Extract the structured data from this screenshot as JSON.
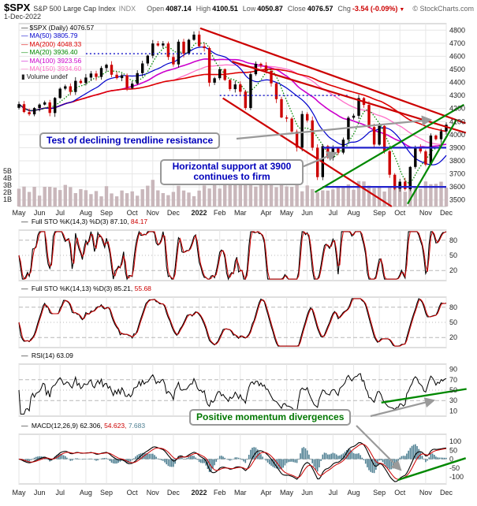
{
  "header": {
    "symbol": "$SPX",
    "index_name": "S&P 500 Large Cap Index",
    "exchange": "INDX",
    "copyright": "© StockCharts.com",
    "date": "1-Dec-2022",
    "quote": {
      "open_label": "Open",
      "open": "4087.14",
      "high_label": "High",
      "high": "4100.51",
      "low_label": "Low",
      "low": "4050.87",
      "close_label": "Close",
      "close": "4076.57",
      "chg_label": "Chg",
      "chg": "-3.54 (-0.09%)",
      "chg_dir": "▼"
    }
  },
  "main_legend": {
    "series_label": "$SPX (Daily)",
    "series_value": "4076.57",
    "ma50_label": "MA(50)",
    "ma50_value": "3805.79",
    "ma200_label": "MA(200)",
    "ma200_value": "4048.33",
    "ma20_label": "MA(20)",
    "ma20_value": "3936.40",
    "ma100_label": "MA(100)",
    "ma100_value": "3923.56",
    "ma150_label": "MA(150)",
    "ma150_value": "3934.60",
    "volume_label": "Volume",
    "volume_value": "undef"
  },
  "panel_legends": {
    "sto_fast_label": "Full STO %K(14,3) %D(3)",
    "sto_fast_k": "87.10,",
    "sto_fast_d": "84.17",
    "sto_slow_label": "Full STO %K(14,13) %D(3)",
    "sto_slow_k": "85.21,",
    "sto_slow_d": "55.68",
    "rsi_label": "RSI(14)",
    "rsi_value": "63.09",
    "macd_label": "MACD(12,26,9)",
    "macd_value": "62.306,",
    "signal_value": "54.623,",
    "hist_value": "7.683"
  },
  "annotations": {
    "trendline": "Test of declining trendline resistance",
    "support_line1": "Horizontal support at 3900",
    "support_line2": "continues to firm",
    "divergence": "Positive momentum divergences"
  },
  "colors": {
    "price_up": "#000000",
    "price_down": "#cc0000",
    "ma50": "#0000cc",
    "ma200": "#dd0000",
    "ma20": "#008800",
    "ma100": "#cc00cc",
    "ma150": "#ff70c8",
    "volume_bar": "#c9b7bb",
    "k_line": "#000000",
    "d_line": "#cc0000",
    "macd_hist": "#4e7f92",
    "annotation_blue": "#0000bb",
    "annotation_green": "#007700",
    "trend_red": "#cc0000",
    "support_blue": "#2222cc",
    "trend_green": "#008800",
    "arrow_gray": "#9a9a9a"
  },
  "axes": {
    "price_ticks": [
      4800,
      4700,
      4600,
      4500,
      4400,
      4300,
      4200,
      4100,
      4000,
      3900,
      3800,
      3700,
      3600,
      3500
    ],
    "volume_ticks": [
      "5B",
      "4B",
      "3B",
      "2B",
      "1B"
    ],
    "sto_ticks": [
      80,
      50,
      20
    ],
    "rsi_ticks": [
      90,
      70,
      50,
      30,
      10
    ],
    "macd_ticks": [
      100,
      50,
      0,
      -50,
      -100
    ]
  },
  "chart_data": [
    {
      "type": "candlestick",
      "title": "$SPX (Daily)",
      "last_close": 4076.57,
      "ylim": [
        3450,
        4850
      ],
      "months": [
        "May",
        "Jun",
        "Jul",
        "Aug",
        "Sep",
        "Oct",
        "Nov",
        "Dec",
        "2022",
        "Feb",
        "Mar",
        "Apr",
        "May",
        "Jun",
        "Jul",
        "Aug",
        "Sep",
        "Oct",
        "Nov",
        "Dec"
      ],
      "month_start_indices": [
        0,
        4,
        8,
        13,
        17,
        22,
        26,
        30,
        35,
        39,
        43,
        48,
        52,
        56,
        61,
        65,
        70,
        74,
        79,
        83
      ],
      "weekly_closes": [
        4233,
        4173,
        4156,
        4204,
        4230,
        4247,
        4166,
        4281,
        4352,
        4370,
        4327,
        4412,
        4396,
        4437,
        4468,
        4442,
        4510,
        4535,
        4459,
        4433,
        4455,
        4357,
        4391,
        4471,
        4545,
        4605,
        4698,
        4683,
        4698,
        4595,
        4538,
        4712,
        4621,
        4726,
        4766,
        4677,
        4663,
        4398,
        4432,
        4501,
        4419,
        4349,
        4385,
        4329,
        4204,
        4463,
        4543,
        4530,
        4488,
        4393,
        4272,
        4132,
        4123,
        4024,
        3901,
        4158,
        4109,
        3900,
        3675,
        3912,
        3825,
        3899,
        3863,
        3962,
        4130,
        4145,
        4280,
        4228,
        4058,
        3924,
        4067,
        3873,
        3693,
        3586,
        3640,
        3583,
        3753,
        3901,
        3872,
        3771,
        3993,
        3965,
        4026,
        4076
      ],
      "moving_averages": {
        "ma20": 3936.4,
        "ma50": 3805.79,
        "ma100": 3923.56,
        "ma150": 3934.6,
        "ma200": 4048.33
      },
      "support_resistance": [
        {
          "type": "hline",
          "level": 4620,
          "from_month": 3.0,
          "to_month": 8.3,
          "style": "dotted",
          "color": "#2222cc"
        },
        {
          "type": "hline",
          "level": 4300,
          "from_month": 9.0,
          "to_month": 14.8,
          "style": "dotted",
          "color": "#2222cc"
        },
        {
          "type": "hline",
          "level": 3900,
          "from_month": 13.6,
          "to_month": 19.9,
          "style": "solid",
          "color": "#2222cc"
        },
        {
          "type": "hline",
          "level": 3600,
          "from_month": 13.6,
          "to_month": 19.9,
          "style": "solid",
          "color": "#2222cc"
        }
      ],
      "trendlines": [
        {
          "p1": {
            "month": 8.05,
            "price": 4815
          },
          "p2": {
            "month": 19.9,
            "price": 4140
          },
          "color": "#cc0000",
          "extend": true
        },
        {
          "p1": {
            "month": 9.6,
            "price": 4560
          },
          "p2": {
            "month": 19.9,
            "price": 4060
          },
          "color": "#cc0000",
          "extend": true
        },
        {
          "p1": {
            "month": 9.15,
            "price": 4280
          },
          "p2": {
            "month": 16.6,
            "price": 3430
          },
          "color": "#cc0000",
          "extend": false
        },
        {
          "p1": {
            "month": 13.3,
            "price": 3560
          },
          "p2": {
            "month": 19.9,
            "price": 4150
          },
          "color": "#008800",
          "extend": true
        },
        {
          "p1": {
            "month": 17.3,
            "price": 3470
          },
          "p2": {
            "month": 19.9,
            "price": 3980
          },
          "color": "#008800",
          "extend": true
        }
      ]
    },
    {
      "type": "line",
      "name": "Full STO %K(14,3) %D(3)",
      "k": 87.1,
      "d": 84.17,
      "ylim": [
        0,
        100
      ],
      "dashed_levels": [
        80,
        20
      ],
      "dotted_levels": [
        50
      ]
    },
    {
      "type": "line",
      "name": "Full STO %K(14,13) %D(3)",
      "k": 85.21,
      "d": 55.68,
      "ylim": [
        0,
        100
      ],
      "dashed_levels": [
        80,
        20
      ],
      "dotted_levels": [
        50
      ]
    },
    {
      "type": "line",
      "name": "RSI(14)",
      "value": 63.09,
      "ylim": [
        0,
        100
      ],
      "dashed_levels": [
        70,
        30
      ],
      "dotted_levels": [
        50
      ],
      "divergence_line": {
        "p1": {
          "month": 16.1,
          "value": 26
        },
        "p2": {
          "month": 19.9,
          "value": 46
        },
        "color": "#008800",
        "extend": true
      }
    },
    {
      "type": "macd",
      "name": "MACD(12,26,9)",
      "macd": 62.306,
      "signal": 54.623,
      "hist": 7.683,
      "ylim": [
        -140,
        140
      ],
      "dashed_levels": [
        0
      ],
      "divergence_line": {
        "p1": {
          "month": 16.9,
          "value": -118
        },
        "p2": {
          "month": 19.9,
          "value": -30
        },
        "color": "#008800",
        "extend": true
      }
    }
  ]
}
